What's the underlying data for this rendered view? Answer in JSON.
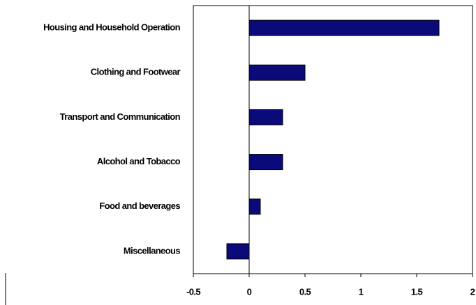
{
  "chart_data": {
    "type": "bar",
    "orientation": "horizontal",
    "categories": [
      "Housing and Household Operation",
      "Clothing and Footwear",
      "Transport and Communication",
      "Alcohol and Tobacco",
      "Food and beverages",
      "Miscellaneous"
    ],
    "values": [
      1.7,
      0.5,
      0.3,
      0.3,
      0.1,
      -0.2
    ],
    "color": "#0a0a7a",
    "xlim": [
      -0.5,
      2
    ],
    "xticks": [
      -0.5,
      0,
      0.5,
      1,
      1.5,
      2
    ],
    "grid": false
  }
}
